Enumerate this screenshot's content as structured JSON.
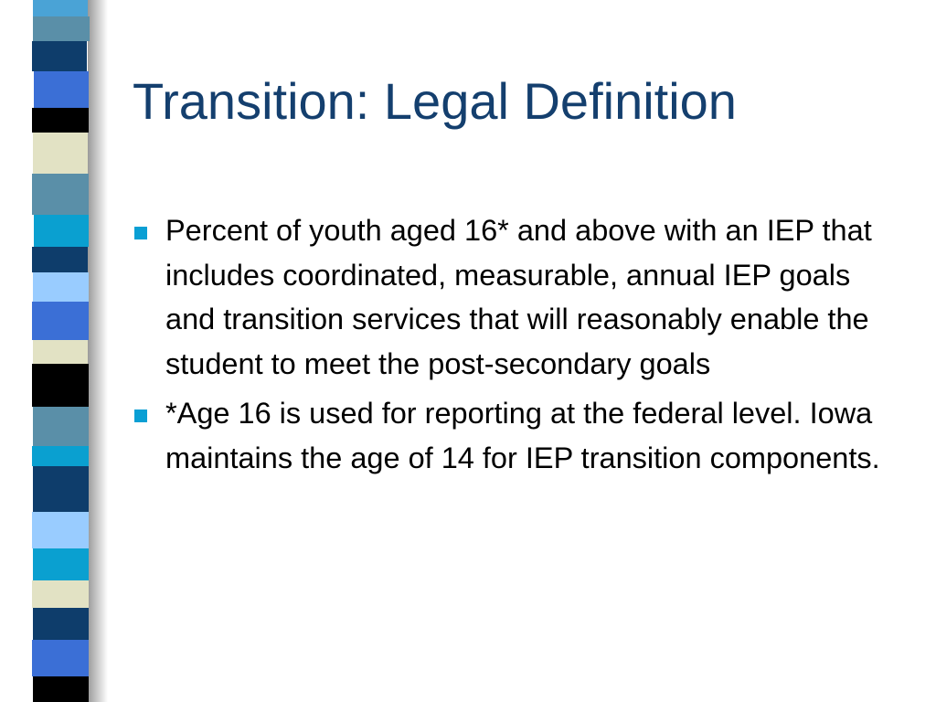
{
  "slide": {
    "title": "Transition: Legal Definition",
    "bullets": [
      "Percent of youth aged 16* and above with an IEP that includes coordinated, measurable, annual IEP goals and transition services that will reasonably enable the student to meet the post-secondary goals",
      "*Age 16 is used for reporting at the federal level. Iowa maintains the age of 14 for IEP transition components."
    ]
  }
}
